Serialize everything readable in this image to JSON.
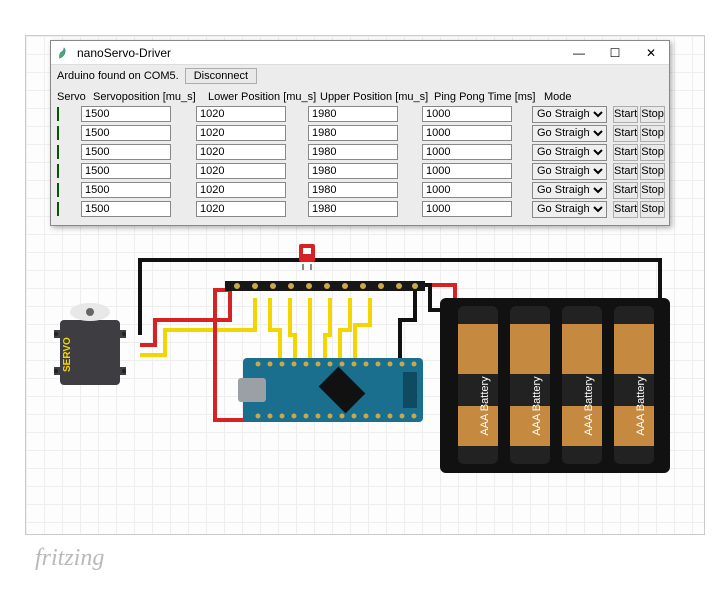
{
  "window": {
    "title": "nanoServo-Driver",
    "status": "Arduino found on COM5.",
    "disconnect": "Disconnect",
    "controls": {
      "min": "—",
      "max": "☐",
      "close": "✕"
    }
  },
  "headers": {
    "servo": "Servo",
    "position": "Servoposition [mu_s]",
    "lower": "Lower Position [mu_s]",
    "upper": "Upper Position [mu_s]",
    "ping": "Ping Pong Time [ms]",
    "mode": "Mode"
  },
  "buttons": {
    "start": "Start",
    "stop": "Stop"
  },
  "mode_option": "Go Straight",
  "rows": [
    {
      "pos": "1500",
      "low": "1020",
      "up": "1980",
      "ping": "1000",
      "mode": "Go Straight"
    },
    {
      "pos": "1500",
      "low": "1020",
      "up": "1980",
      "ping": "1000",
      "mode": "Go Straight"
    },
    {
      "pos": "1500",
      "low": "1020",
      "up": "1980",
      "ping": "1000",
      "mode": "Go Straight"
    },
    {
      "pos": "1500",
      "low": "1020",
      "up": "1980",
      "ping": "1000",
      "mode": "Go Straight"
    },
    {
      "pos": "1500",
      "low": "1020",
      "up": "1980",
      "ping": "1000",
      "mode": "Go Straight"
    },
    {
      "pos": "1500",
      "low": "1020",
      "up": "1980",
      "ping": "1000",
      "mode": "Go Straight"
    }
  ],
  "branding": "fritzing",
  "circuit": {
    "servo": {
      "label": "SERVO",
      "body": "#3d3d42",
      "horn": "#e8e8e8",
      "text_color": "#f5d400"
    },
    "arduino": {
      "board": "#1a6e8e",
      "chip": "#111",
      "usb": "#9aa0a5",
      "pins_bg": "#0f4a60"
    },
    "battery": {
      "case": "#111",
      "cell_body": "#222",
      "cell_wrap": "#c58a3f",
      "label": "AAA Battery",
      "label_color": "#fff",
      "count": 4
    },
    "switch": {
      "body": "#d62222"
    },
    "header": {
      "pin": "#2a2a2a",
      "plastic": "#171717",
      "gold": "#caa84a"
    },
    "wires": {
      "black": "#111111",
      "red": "#d62222",
      "yellow": "#f3d500"
    }
  }
}
